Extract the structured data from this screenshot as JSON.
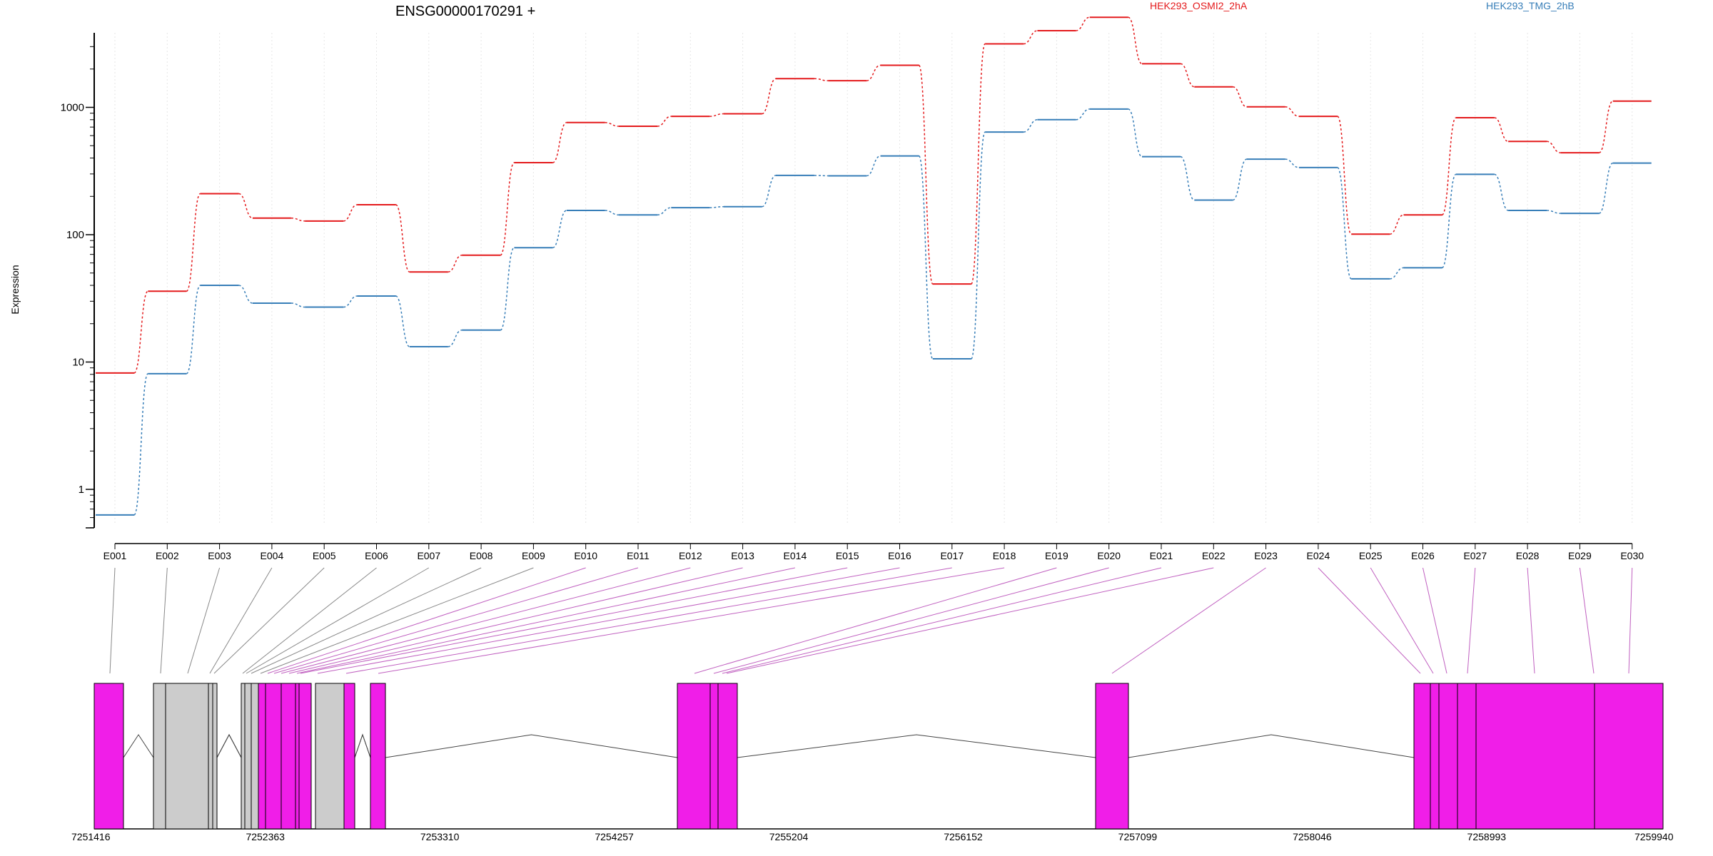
{
  "chart_data": {
    "type": "line",
    "title": "ENSG00000170291 +",
    "ylabel": "Expression",
    "yscale": "log",
    "yticks": [
      1,
      10,
      100,
      1000
    ],
    "ytick_labels": [
      "1",
      "10",
      "100",
      "1000"
    ],
    "categories": [
      "E001",
      "E002",
      "E003",
      "E004",
      "E005",
      "E006",
      "E007",
      "E008",
      "E009",
      "E010",
      "E011",
      "E012",
      "E013",
      "E014",
      "E015",
      "E016",
      "E017",
      "E018",
      "E019",
      "E020",
      "E021",
      "E022",
      "E023",
      "E024",
      "E025",
      "E026",
      "E027",
      "E028",
      "E029",
      "E030"
    ],
    "series": [
      {
        "name": "HEK293_OSMI2_2hA",
        "color": "#e41a1c",
        "values": [
          8.2,
          36,
          210,
          135,
          128,
          172,
          51,
          69,
          368,
          760,
          710,
          850,
          890,
          1680,
          1620,
          2140,
          41,
          3150,
          4000,
          5100,
          2200,
          1450,
          1010,
          850,
          101,
          143,
          830,
          540,
          440,
          1120
        ]
      },
      {
        "name": "HEK293_TMG_2hB",
        "color": "#377eb8",
        "values": [
          0.63,
          8.1,
          40,
          29,
          27,
          33,
          13.2,
          17.8,
          79,
          155,
          143,
          163,
          166,
          292,
          290,
          415,
          10.6,
          640,
          800,
          970,
          410,
          187,
          392,
          337,
          45,
          55,
          298,
          155,
          147,
          365
        ]
      }
    ],
    "gene_model": {
      "coordinate_labels": [
        "7251416",
        "7252363",
        "7253310",
        "7254257",
        "7255204",
        "7256152",
        "7257099",
        "7258046",
        "7258993",
        "7259940"
      ],
      "coordinate_range": [
        7251416,
        7259940
      ],
      "exon_color": "#f01ee8",
      "excluded_color": "#cccccc"
    }
  }
}
